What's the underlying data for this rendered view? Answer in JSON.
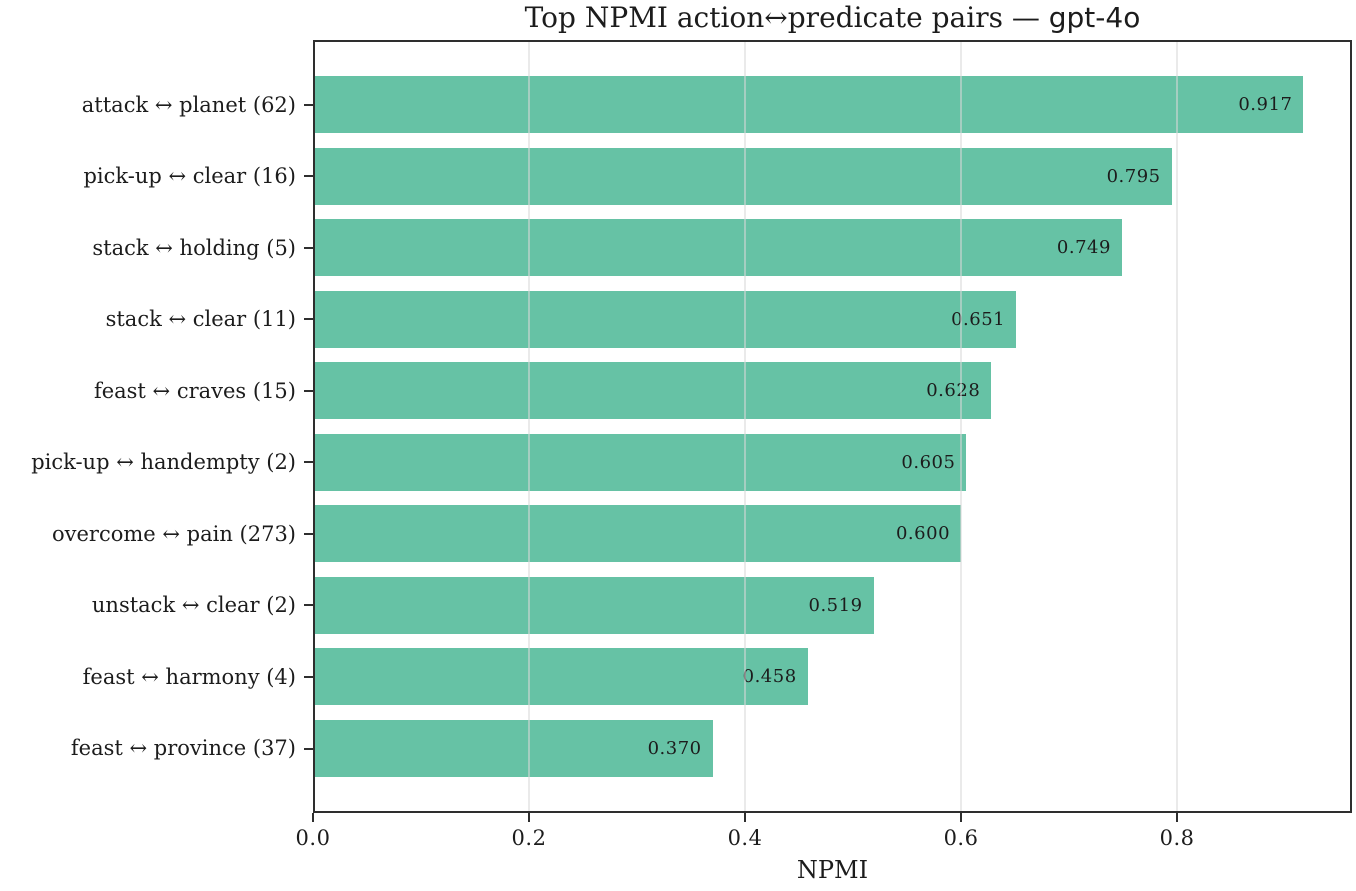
{
  "title": {
    "prefix": "Top NPMI action↔predicate pairs — ",
    "model": "gpt-4o"
  },
  "chart_data": {
    "type": "bar",
    "orientation": "horizontal",
    "title": "Top NPMI action↔predicate pairs — gpt-4o",
    "categories": [
      "attack ↔ planet (62)",
      "pick-up ↔ clear (16)",
      "stack ↔ holding (5)",
      "stack ↔ clear (11)",
      "feast ↔ craves (15)",
      "pick-up ↔ handempty (2)",
      "overcome ↔ pain (273)",
      "unstack ↔ clear (2)",
      "feast ↔ harmony (4)",
      "feast ↔ province (37)"
    ],
    "counts": [
      62,
      16,
      5,
      11,
      15,
      2,
      273,
      2,
      4,
      37
    ],
    "values": [
      0.917,
      0.795,
      0.749,
      0.651,
      0.628,
      0.605,
      0.6,
      0.519,
      0.458,
      0.37
    ],
    "value_labels": [
      "0.917",
      "0.795",
      "0.749",
      "0.651",
      "0.628",
      "0.605",
      "0.600",
      "0.519",
      "0.458",
      "0.370"
    ],
    "xlabel": "NPMI",
    "xlim": [
      0,
      0.962
    ],
    "xtick_values": [
      0.0,
      0.2,
      0.4,
      0.6,
      0.8
    ],
    "xtick_labels": [
      "0.0",
      "0.2",
      "0.4",
      "0.6",
      "0.8"
    ],
    "grid": true,
    "legend": false,
    "bar_color": "#66c2a5",
    "grid_color": "#d9d9d9",
    "spine_color": "#2e2e2e",
    "text_color": "#1c1c1c"
  }
}
